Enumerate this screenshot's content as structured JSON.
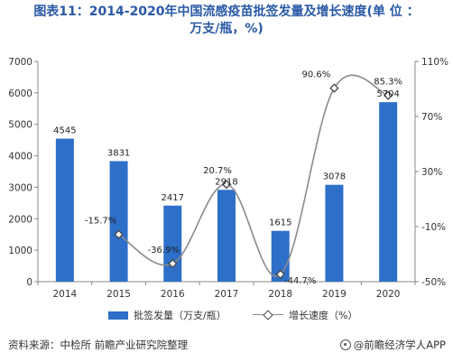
{
  "title_line1": "图表11：2014-2020年中国流感疫苗批签发量及增长速度(单 位 ：",
  "title_line2": "万支/瓶，%)",
  "legend": {
    "bar_label": "批签发量（万支/瓶）",
    "line_label": "增长速度（%）"
  },
  "footer": {
    "source": "资料来源：中检所 前瞻产业研究院整理",
    "brand": "@前瞻经济学人APP"
  },
  "colors": {
    "bar": "#2e6fc9",
    "line": "#8a8a8a",
    "title": "#2a5aa6"
  },
  "chart_data": {
    "type": "bar",
    "categories": [
      "2014",
      "2015",
      "2016",
      "2017",
      "2018",
      "2019",
      "2020"
    ],
    "series": [
      {
        "name": "批签发量（万支/瓶）",
        "type": "bar",
        "axis": "left",
        "values": [
          4545,
          3831,
          2417,
          2918,
          1615,
          3078,
          5704
        ],
        "labels": [
          "4545",
          "3831",
          "2417",
          "2918",
          "1615",
          "3078",
          "5704"
        ]
      },
      {
        "name": "增长速度（%）",
        "type": "line",
        "axis": "right",
        "values": [
          null,
          -15.7,
          -36.9,
          20.7,
          -44.7,
          90.6,
          85.3
        ],
        "labels": [
          "",
          "-15.7%",
          "-36.9%",
          "20.7%",
          "-44.7%",
          "90.6%",
          "85.3%"
        ]
      }
    ],
    "y_left": {
      "min": 0,
      "max": 7000,
      "ticks": [
        "0",
        "1000",
        "2000",
        "3000",
        "4000",
        "5000",
        "6000",
        "7000"
      ]
    },
    "y_right": {
      "min": -50,
      "max": 110,
      "ticks": [
        "-50%",
        "-10%",
        "30%",
        "70%",
        "110%"
      ]
    },
    "grid": false,
    "legend_position": "bottom"
  }
}
